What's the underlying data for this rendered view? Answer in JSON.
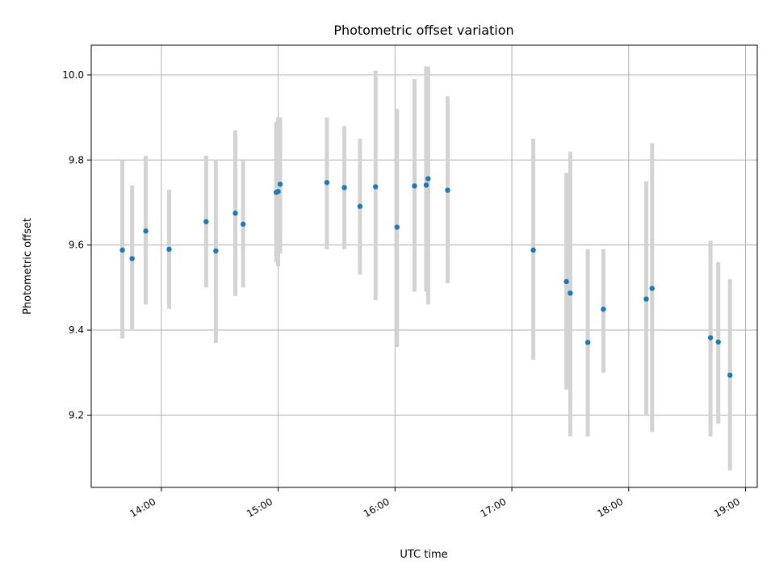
{
  "chart_data": {
    "type": "scatter",
    "title": "Photometric offset variation",
    "xlabel": "UTC time",
    "ylabel": "Photometric offset",
    "x_ticks": [
      "14:00",
      "15:00",
      "16:00",
      "17:00",
      "18:00",
      "19:00"
    ],
    "y_ticks": [
      "9.2",
      "9.4",
      "9.6",
      "9.8",
      "10.0"
    ],
    "xlim": [
      "13:24",
      "19:06"
    ],
    "ylim": [
      9.03,
      10.07
    ],
    "grid": true,
    "colors": {
      "point": "#1f77b4",
      "errorbar": "#d3d3d3",
      "grid": "#b0b0b0",
      "axes": "#000000"
    },
    "series": [
      {
        "points": [
          {
            "t": "13:40",
            "y": 9.588,
            "lo": 9.38,
            "hi": 9.8
          },
          {
            "t": "13:45",
            "y": 9.568,
            "lo": 9.4,
            "hi": 9.74
          },
          {
            "t": "13:52",
            "y": 9.633,
            "lo": 9.46,
            "hi": 9.81
          },
          {
            "t": "14:04",
            "y": 9.59,
            "lo": 9.45,
            "hi": 9.73
          },
          {
            "t": "14:23",
            "y": 9.655,
            "lo": 9.5,
            "hi": 9.81
          },
          {
            "t": "14:28",
            "y": 9.586,
            "lo": 9.37,
            "hi": 9.8
          },
          {
            "t": "14:38",
            "y": 9.675,
            "lo": 9.48,
            "hi": 9.87
          },
          {
            "t": "14:42",
            "y": 9.649,
            "lo": 9.5,
            "hi": 9.8
          },
          {
            "t": "14:59",
            "y": 9.724,
            "lo": 9.56,
            "hi": 9.89
          },
          {
            "t": "15:00",
            "y": 9.726,
            "lo": 9.55,
            "hi": 9.9
          },
          {
            "t": "15:01",
            "y": 9.743,
            "lo": 9.58,
            "hi": 9.9
          },
          {
            "t": "15:25",
            "y": 9.747,
            "lo": 9.59,
            "hi": 9.9
          },
          {
            "t": "15:34",
            "y": 9.735,
            "lo": 9.59,
            "hi": 9.88
          },
          {
            "t": "15:42",
            "y": 9.691,
            "lo": 9.53,
            "hi": 9.85
          },
          {
            "t": "15:50",
            "y": 9.737,
            "lo": 9.47,
            "hi": 10.01
          },
          {
            "t": "16:01",
            "y": 9.642,
            "lo": 9.36,
            "hi": 9.92
          },
          {
            "t": "16:10",
            "y": 9.739,
            "lo": 9.49,
            "hi": 9.99
          },
          {
            "t": "16:16",
            "y": 9.741,
            "lo": 9.49,
            "hi": 10.02
          },
          {
            "t": "16:17",
            "y": 9.756,
            "lo": 9.46,
            "hi": 10.02
          },
          {
            "t": "16:27",
            "y": 9.729,
            "lo": 9.51,
            "hi": 9.95
          },
          {
            "t": "17:11",
            "y": 9.588,
            "lo": 9.33,
            "hi": 9.85
          },
          {
            "t": "17:28",
            "y": 9.514,
            "lo": 9.26,
            "hi": 9.77
          },
          {
            "t": "17:30",
            "y": 9.487,
            "lo": 9.15,
            "hi": 9.82
          },
          {
            "t": "17:39",
            "y": 9.371,
            "lo": 9.15,
            "hi": 9.59
          },
          {
            "t": "17:47",
            "y": 9.449,
            "lo": 9.3,
            "hi": 9.59
          },
          {
            "t": "18:09",
            "y": 9.473,
            "lo": 9.2,
            "hi": 9.75
          },
          {
            "t": "18:12",
            "y": 9.498,
            "lo": 9.16,
            "hi": 9.84
          },
          {
            "t": "18:42",
            "y": 9.382,
            "lo": 9.15,
            "hi": 9.61
          },
          {
            "t": "18:46",
            "y": 9.372,
            "lo": 9.18,
            "hi": 9.56
          },
          {
            "t": "18:52",
            "y": 9.294,
            "lo": 9.07,
            "hi": 9.52
          }
        ]
      }
    ]
  }
}
